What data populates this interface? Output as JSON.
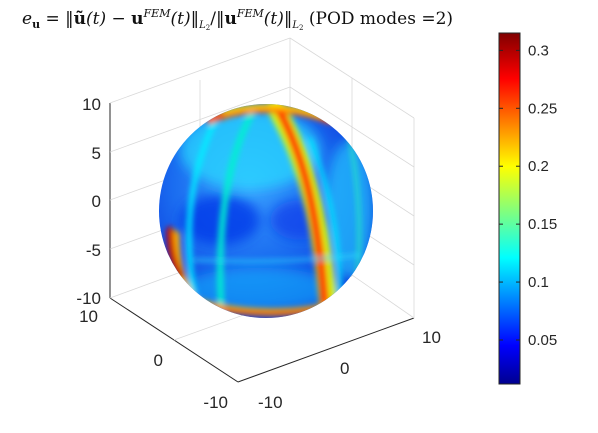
{
  "chart_data": {
    "type": "heatmap",
    "title": "e_u = ||ũ(t) − u^FEM(t)||_L2 / ||u^FEM(t)||_L2 (POD modes =2)",
    "title_parts": {
      "lhs": "e",
      "lhs_sub": "u",
      "eq": " = ",
      "num_open": "‖",
      "u_tilde": "ũ",
      "t_arg": "(t)",
      "minus": " − ",
      "u_bold": "u",
      "fem_sup": "FEM",
      "num_close": "‖",
      "norm_sub": "L",
      "norm_sub2": "2",
      "slash": "/",
      "den_open": "‖",
      "den_close": "‖",
      "pod": " (POD modes =2)"
    },
    "surface": "sphere",
    "axes": {
      "z": {
        "ticks": [
          "10",
          "5",
          "0",
          "-5",
          "-10"
        ],
        "range": [
          -10,
          10
        ]
      },
      "x": {
        "ticks": [
          "10",
          "0",
          "-10"
        ],
        "range": [
          -10,
          10
        ]
      },
      "y": {
        "ticks": [
          "-10",
          "0",
          "10"
        ],
        "range": [
          -10,
          10
        ]
      }
    },
    "colorbar": {
      "ticks": [
        "0.3",
        "0.25",
        "0.2",
        "0.15",
        "0.1",
        "0.05"
      ],
      "tick_values": [
        0.3,
        0.25,
        0.2,
        0.15,
        0.1,
        0.05
      ],
      "range": [
        0.012,
        0.315
      ],
      "colormap": "jet"
    },
    "grid": true
  },
  "colors": {
    "jet_dark_blue": "#00008f",
    "jet_blue": "#0060ff",
    "jet_cyan": "#00e5ff",
    "jet_yellow": "#ffff00",
    "jet_red": "#ff2000",
    "jet_dark_red": "#800000",
    "sphere_base": "#1a6cf0"
  }
}
